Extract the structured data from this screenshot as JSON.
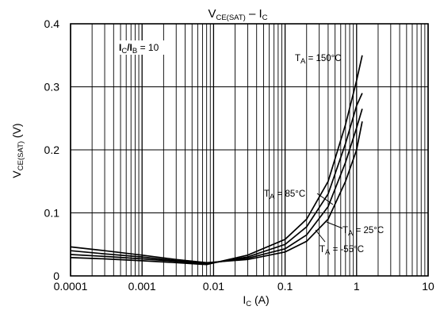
{
  "chart_data": {
    "type": "line",
    "title": {
      "main": "V",
      "sub": "CE(SAT)",
      "sep": "–",
      "main2": "I",
      "sub2": "C"
    },
    "xlabel": {
      "main": "I",
      "sub": "C",
      "unit": "(A)"
    },
    "ylabel": {
      "main": "V",
      "sub": "CE(SAT)",
      "unit": "(V)"
    },
    "x_scale": "log",
    "xlim": [
      0.0001,
      10
    ],
    "ylim": [
      0,
      0.4
    ],
    "x_ticks": [
      "0.0001",
      "0.001",
      "0.01",
      "0.1",
      "1",
      "10"
    ],
    "y_ticks": [
      "0",
      "0.1",
      "0.2",
      "0.3",
      "0.4"
    ],
    "grid": true,
    "condition": {
      "main": "I",
      "sub": "C",
      "mid": "/I",
      "sub2": "B",
      "rest": "= 10"
    },
    "series": [
      {
        "name": "T_A = 150°C",
        "label": {
          "pre": "T",
          "sub": "A",
          "rest": " = 150°C"
        },
        "x": [
          0.0001,
          0.0003,
          0.001,
          0.003,
          0.008,
          0.03,
          0.1,
          0.2,
          0.4,
          0.7,
          1.0,
          1.2
        ],
        "y": [
          0.029,
          0.027,
          0.024,
          0.021,
          0.018,
          0.033,
          0.058,
          0.09,
          0.15,
          0.24,
          0.31,
          0.35
        ]
      },
      {
        "name": "T_A = 85°C",
        "label": {
          "pre": "T",
          "sub": "A",
          "rest": " = 85°C"
        },
        "x": [
          0.0001,
          0.0003,
          0.001,
          0.003,
          0.008,
          0.03,
          0.1,
          0.2,
          0.4,
          0.7,
          1.0,
          1.2
        ],
        "y": [
          0.034,
          0.031,
          0.027,
          0.023,
          0.019,
          0.03,
          0.05,
          0.078,
          0.13,
          0.21,
          0.27,
          0.29
        ]
      },
      {
        "name": "T_A = 25°C",
        "label": {
          "pre": "T",
          "sub": "A",
          "rest": " = 25°C"
        },
        "x": [
          0.0001,
          0.0003,
          0.001,
          0.003,
          0.008,
          0.03,
          0.1,
          0.2,
          0.4,
          0.7,
          1.0,
          1.2
        ],
        "y": [
          0.04,
          0.035,
          0.03,
          0.024,
          0.02,
          0.028,
          0.043,
          0.065,
          0.11,
          0.18,
          0.235,
          0.265
        ]
      },
      {
        "name": "T_A = -55°C",
        "label": {
          "pre": "T",
          "sub": "A",
          "rest": " = -55°C"
        },
        "x": [
          0.0001,
          0.0003,
          0.001,
          0.003,
          0.008,
          0.03,
          0.1,
          0.2,
          0.4,
          0.7,
          1.0,
          1.2
        ],
        "y": [
          0.046,
          0.04,
          0.033,
          0.026,
          0.021,
          0.026,
          0.038,
          0.055,
          0.09,
          0.15,
          0.2,
          0.245
        ]
      }
    ]
  }
}
